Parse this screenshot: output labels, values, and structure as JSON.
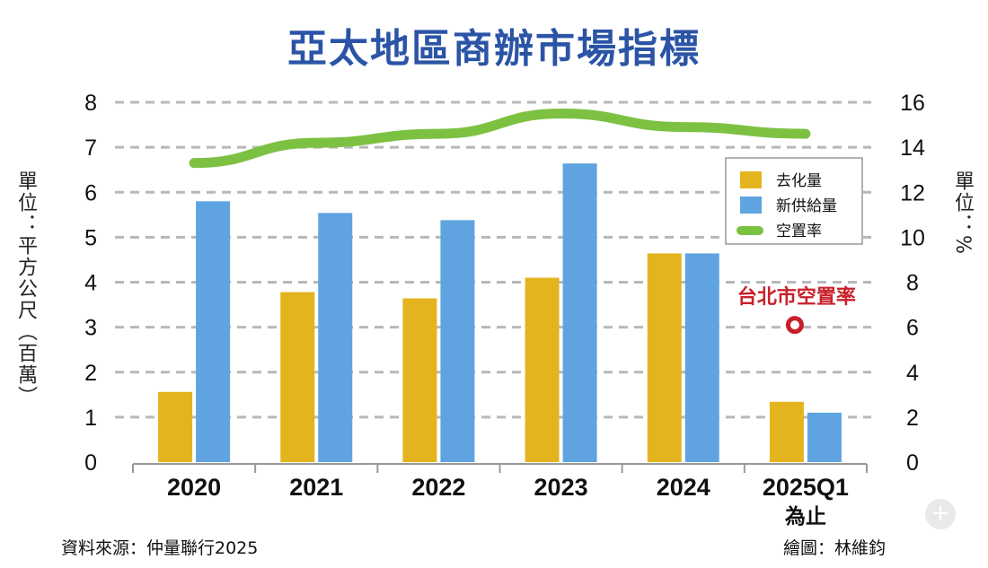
{
  "chart_data": {
    "type": "bar",
    "title": "亞太地區商辦市場指標",
    "categories": [
      "2020",
      "2021",
      "2022",
      "2023",
      "2024",
      "2025Q1"
    ],
    "category_sublabels": [
      "",
      "",
      "",
      "",
      "",
      "為止"
    ],
    "ylabel_left": "單位：平方公尺（百萬）",
    "ylabel_right": "單位：%",
    "ylim_left": [
      0,
      8
    ],
    "ylim_right": [
      0,
      16
    ],
    "yticks_left": [
      "0",
      "1",
      "2",
      "3",
      "4",
      "5",
      "6",
      "7",
      "8"
    ],
    "yticks_right": [
      "0",
      "2",
      "4",
      "6",
      "8",
      "10",
      "12",
      "14",
      "16"
    ],
    "grid": true,
    "legend_position": "right",
    "series": [
      {
        "name": "去化量",
        "type": "bar",
        "axis": "left",
        "color": "#e4b41f",
        "values": [
          1.56,
          3.78,
          3.64,
          4.1,
          4.64,
          1.34
        ]
      },
      {
        "name": "新供給量",
        "type": "bar",
        "axis": "left",
        "color": "#5fa4e0",
        "values": [
          5.8,
          5.54,
          5.38,
          6.64,
          4.64,
          1.1
        ]
      },
      {
        "name": "空置率",
        "type": "line",
        "axis": "right",
        "color": "#7dc142",
        "values": [
          13.3,
          14.2,
          14.6,
          15.5,
          14.9,
          14.6
        ]
      }
    ],
    "annotation": {
      "text": "台北市空置率",
      "category": "2025Q1",
      "value": 6.1,
      "axis": "right",
      "color": "#c8202a"
    }
  },
  "footer": {
    "source": "資料來源：仲量聯行2025",
    "credit": "繪圖：林維鈞"
  },
  "zoom_icon": "+"
}
